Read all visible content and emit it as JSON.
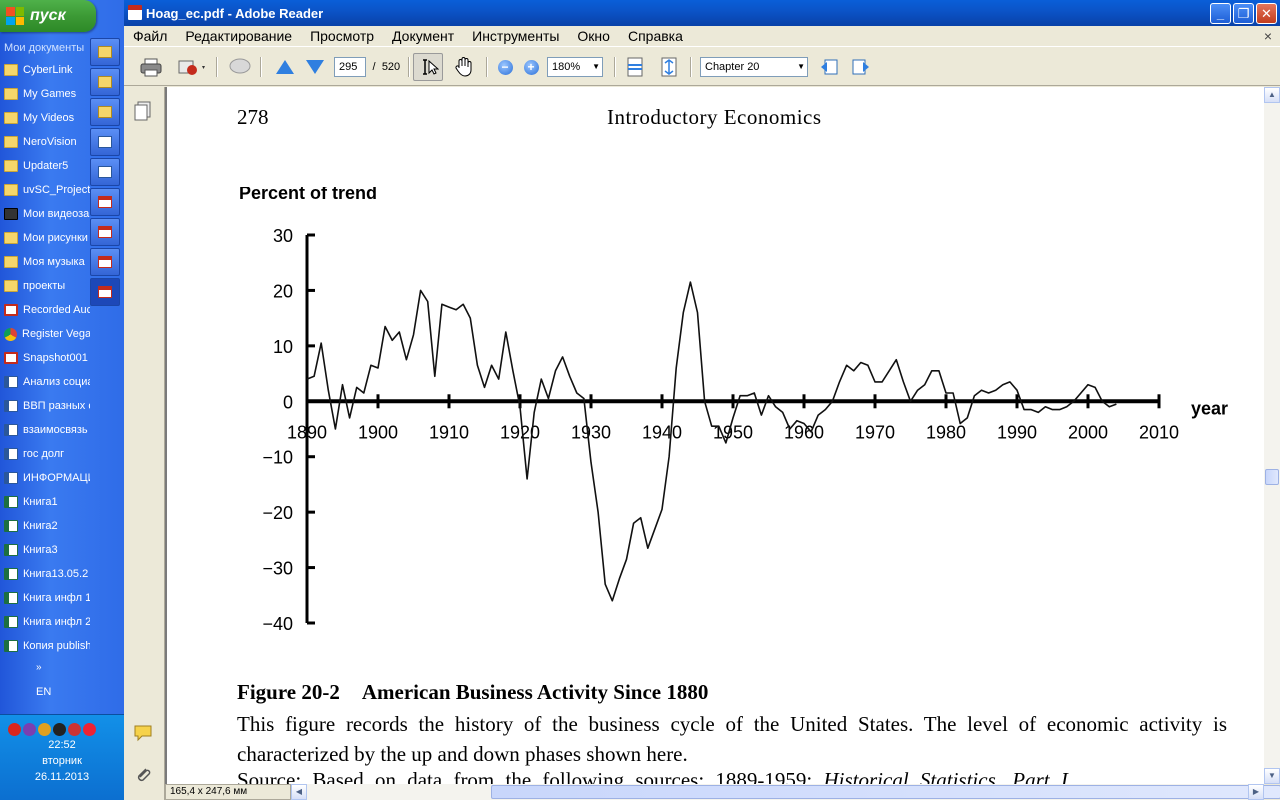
{
  "taskbar": {
    "start_label": "пуск",
    "quick_items": [
      {
        "label": "Мои документы",
        "icon": "none"
      },
      {
        "label": "CyberLink",
        "icon": "folder-icon"
      },
      {
        "label": "My Games",
        "icon": "folder-icon"
      },
      {
        "label": "My Videos",
        "icon": "folder-icon"
      },
      {
        "label": "NeroVision",
        "icon": "folder-icon"
      },
      {
        "label": "Updater5",
        "icon": "folder-icon"
      },
      {
        "label": "uvSC_Project",
        "icon": "folder-icon"
      },
      {
        "label": "Мои видеоза",
        "icon": "film-folder-icon"
      },
      {
        "label": "Мои рисунки",
        "icon": "folder-icon"
      },
      {
        "label": "Моя музыка",
        "icon": "folder-icon"
      },
      {
        "label": "проекты",
        "icon": "folder-icon"
      },
      {
        "label": "Recorded Auc",
        "icon": "audio-icon"
      },
      {
        "label": "Register Vega",
        "icon": "chrome-icon"
      },
      {
        "label": "Snapshot001",
        "icon": "image-icon"
      },
      {
        "label": "Анализ социа",
        "icon": "word-doc-icon"
      },
      {
        "label": "ВВП разных с",
        "icon": "word-doc-icon"
      },
      {
        "label": "взаимосвязь",
        "icon": "word-doc-icon"
      },
      {
        "label": "гос долг",
        "icon": "word-doc-icon"
      },
      {
        "label": "ИНФОРМАЦИ",
        "icon": "word-doc-icon"
      },
      {
        "label": "Книга1",
        "icon": "excel-doc-icon"
      },
      {
        "label": "Книга2",
        "icon": "excel-doc-icon"
      },
      {
        "label": "Книга3",
        "icon": "excel-doc-icon"
      },
      {
        "label": "Книга13.05.2",
        "icon": "excel-doc-icon"
      },
      {
        "label": "Книга инфл 1",
        "icon": "excel-doc-icon"
      },
      {
        "label": "Книга инфл 2",
        "icon": "excel-doc-icon"
      },
      {
        "label": "Копия publish",
        "icon": "excel-doc-icon"
      }
    ],
    "more_label": "»",
    "language": "EN",
    "clock": {
      "time": "22:52",
      "weekday": "вторник",
      "date": "26.11.2013"
    }
  },
  "window": {
    "title": "Hoag_ec.pdf - Adobe Reader",
    "menu": [
      "Файл",
      "Редактирование",
      "Просмотр",
      "Документ",
      "Инструменты",
      "Окно",
      "Справка"
    ],
    "menu_close": "×",
    "toolbar": {
      "page_current": "295",
      "page_separator": "/",
      "page_total": "520",
      "zoom_value": "180%",
      "chapter_value": "Chapter 20"
    },
    "status": {
      "page_size": "165,4 x 247,6 мм"
    }
  },
  "page": {
    "page_number": "278",
    "running_head": "Introductory Economics",
    "caption": {
      "figure_number": "Figure 20-2",
      "figure_title": "American Business Activity Since 1880",
      "body": "This figure records the history of the business cycle of the United States. The level of economic activity is characterized by the up and down phases shown here.",
      "source_prefix": "Source: Based on data from the following sources: 1889-1959:",
      "source_italic": "Historical Statistics, Part I"
    }
  },
  "chart_data": {
    "type": "line",
    "ylabel": "Percent of trend",
    "xlabel": "year",
    "xlim": [
      1890,
      2010
    ],
    "ylim": [
      -40,
      30
    ],
    "x_ticks": [
      "1890",
      "1900",
      "1910",
      "1920",
      "1930",
      "1940",
      "1950",
      "1960",
      "1970",
      "1980",
      "1990",
      "2000",
      "2010"
    ],
    "y_ticks": [
      "30",
      "20",
      "10",
      "0",
      "−10",
      "−20",
      "−30",
      "−40"
    ],
    "grid": false,
    "series": [
      {
        "x": [
          1890,
          1891,
          1892,
          1893,
          1894,
          1895,
          1896,
          1897,
          1898,
          1899,
          1900,
          1901,
          1902,
          1903,
          1904,
          1905,
          1906,
          1907,
          1908,
          1909,
          1910,
          1911,
          1912,
          1913,
          1914,
          1915,
          1916,
          1917,
          1918,
          1919,
          1920,
          1921,
          1922,
          1923,
          1924,
          1925,
          1926,
          1927,
          1928,
          1929,
          1930,
          1931,
          1932,
          1933,
          1934,
          1935,
          1936,
          1937,
          1938,
          1939,
          1940,
          1941,
          1942,
          1943,
          1944,
          1945,
          1946,
          1947,
          1948,
          1949,
          1950,
          1951,
          1952,
          1953,
          1954,
          1955,
          1956,
          1957,
          1958,
          1959,
          1960,
          1961,
          1962,
          1963,
          1964,
          1965,
          1966,
          1967,
          1968,
          1969,
          1970,
          1971,
          1972,
          1973,
          1974,
          1975,
          1976,
          1977,
          1978,
          1979,
          1980,
          1981,
          1982,
          1983,
          1984,
          1985,
          1986,
          1987,
          1988,
          1989,
          1990,
          1991,
          1992,
          1993,
          1994,
          1995,
          1996,
          1997,
          1998,
          1999,
          2000,
          2001,
          2002,
          2003,
          2004
        ],
        "values": [
          4,
          4.5,
          10.5,
          2,
          -5,
          3,
          -3,
          2.5,
          1.5,
          6.5,
          6,
          13.5,
          11,
          12.5,
          7.5,
          12,
          20,
          18,
          4.5,
          17.5,
          17,
          16.5,
          17.5,
          15,
          6.5,
          2.5,
          6.5,
          4,
          12.5,
          5.5,
          -1,
          -14,
          -2,
          4,
          0.5,
          5.5,
          8,
          4.5,
          1.5,
          0.5,
          -11,
          -20,
          -33,
          -36,
          -32,
          -28.5,
          -22,
          -21,
          -26.5,
          -23,
          -19.5,
          -10,
          6,
          16,
          21.5,
          16,
          0,
          -4.5,
          -4.5,
          -7.5,
          -3,
          1,
          1,
          1.5,
          -2.5,
          1,
          -1,
          -2,
          -5,
          -3.5,
          -4,
          -5.5,
          -2.5,
          -1.5,
          0,
          3.5,
          6.5,
          5.5,
          7,
          6.5,
          3.5,
          3.5,
          5.5,
          7.5,
          3.5,
          0,
          2,
          3,
          5.5,
          5.5,
          1.5,
          1.5,
          -4,
          -3,
          1,
          2,
          1.5,
          2,
          3,
          3.5,
          2,
          -1.5,
          -1.5,
          -2,
          -1,
          -1.5,
          -1.5,
          -1,
          0,
          1.5,
          3,
          2.5,
          0,
          -1,
          -0.5
        ]
      }
    ]
  }
}
